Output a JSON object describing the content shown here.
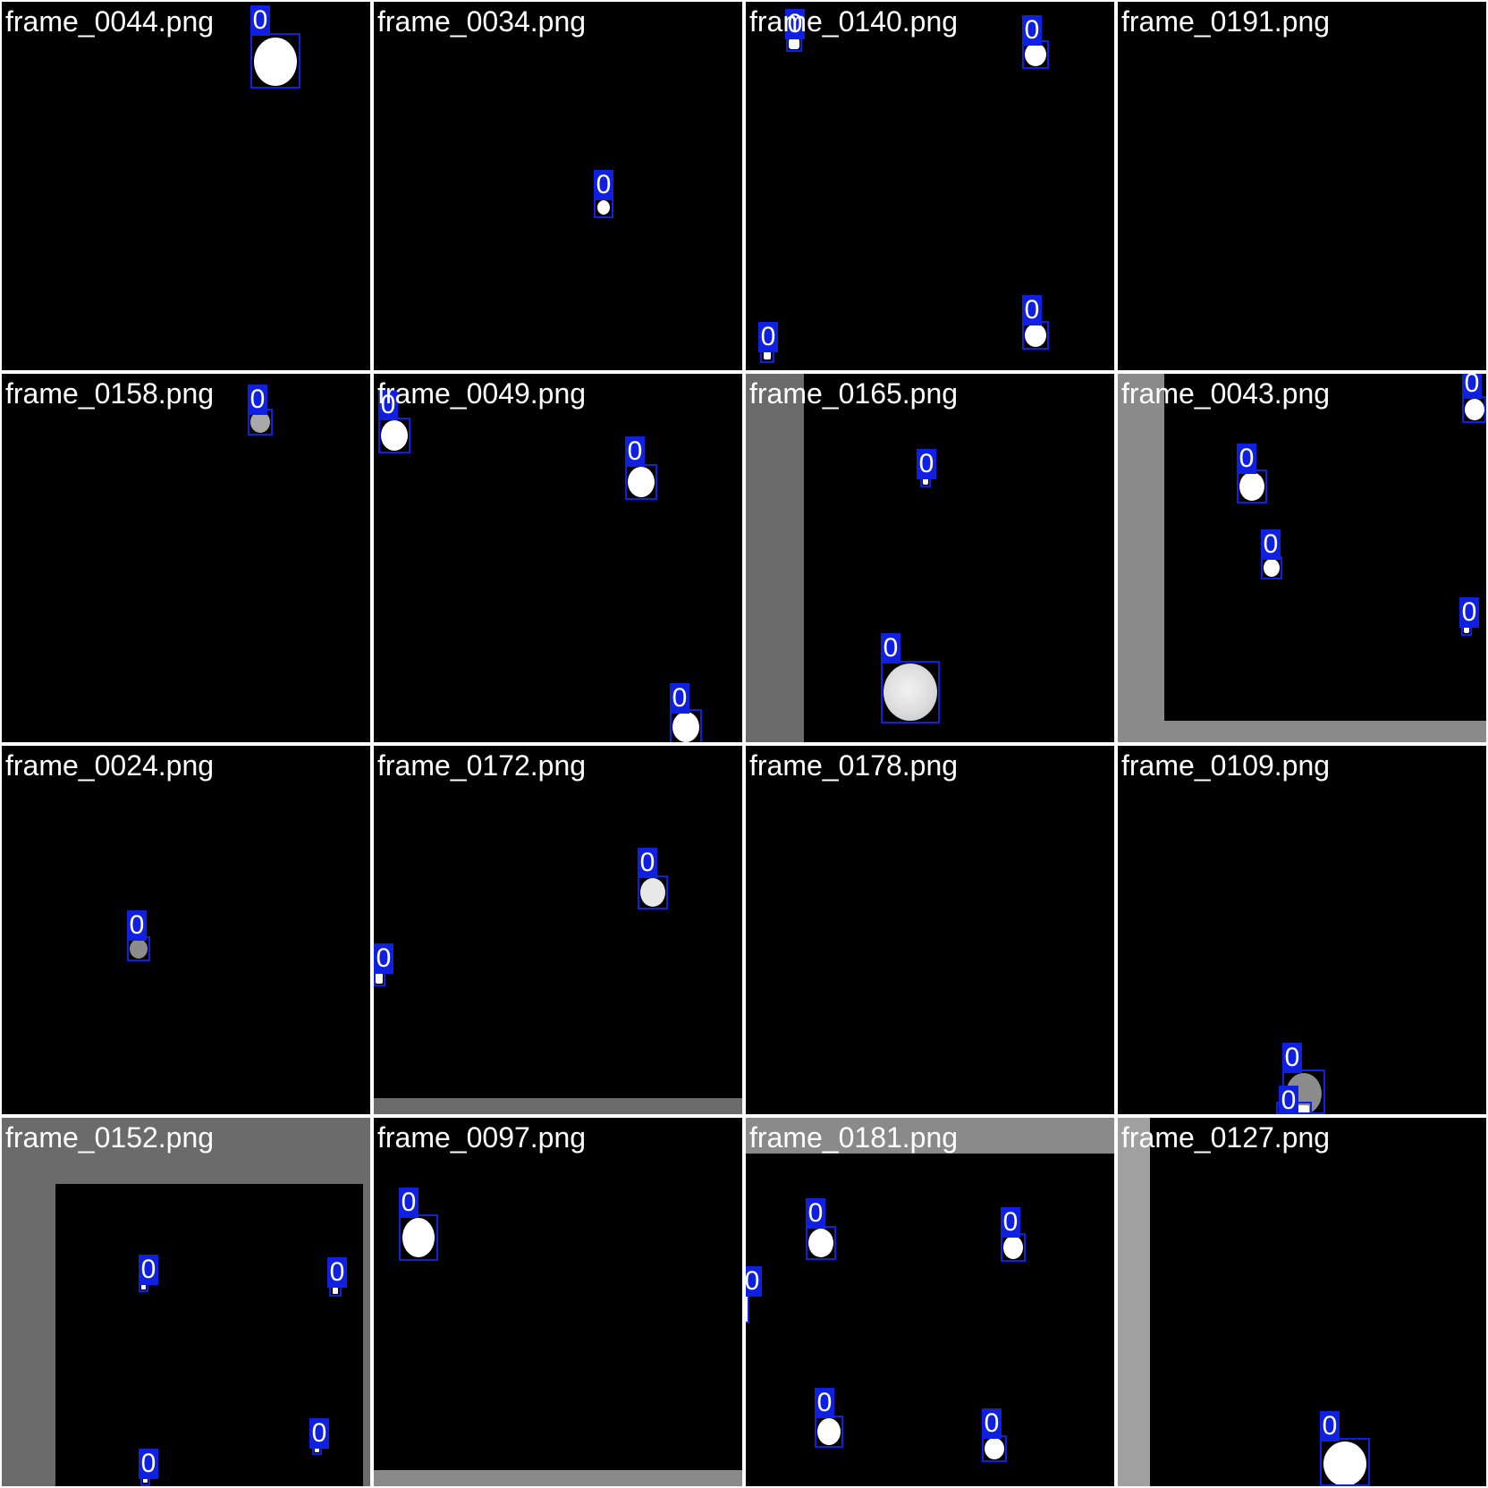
{
  "colors": {
    "background": "#000000",
    "separator": "#ffffff",
    "box": "#1020e0",
    "label_text": "#ffffff",
    "filename_text": "#ffffff"
  },
  "tiles": [
    {
      "filename": "frame_0044.png",
      "detections": [
        "0"
      ]
    },
    {
      "filename": "frame_0034.png",
      "detections": [
        "0"
      ]
    },
    {
      "filename": "frame_0140.png",
      "detections": [
        "0",
        "0",
        "0",
        "0"
      ]
    },
    {
      "filename": "frame_0191.png",
      "detections": []
    },
    {
      "filename": "frame_0158.png",
      "detections": [
        "0"
      ]
    },
    {
      "filename": "frame_0049.png",
      "detections": [
        "0",
        "0",
        "0"
      ]
    },
    {
      "filename": "frame_0165.png",
      "detections": [
        "0",
        "0"
      ]
    },
    {
      "filename": "frame_0043.png",
      "detections": [
        "0",
        "0",
        "0",
        "0"
      ]
    },
    {
      "filename": "frame_0024.png",
      "detections": [
        "0"
      ]
    },
    {
      "filename": "frame_0172.png",
      "detections": [
        "0",
        "0"
      ]
    },
    {
      "filename": "frame_0178.png",
      "detections": []
    },
    {
      "filename": "frame_0109.png",
      "detections": [
        "0",
        "0"
      ]
    },
    {
      "filename": "frame_0152.png",
      "detections": [
        "0",
        "0",
        "0",
        "0"
      ]
    },
    {
      "filename": "frame_0097.png",
      "detections": [
        "0"
      ]
    },
    {
      "filename": "frame_0181.png",
      "detections": [
        "0",
        "0",
        "0",
        "0",
        "0"
      ]
    },
    {
      "filename": "frame_0127.png",
      "detections": [
        "0"
      ]
    }
  ]
}
